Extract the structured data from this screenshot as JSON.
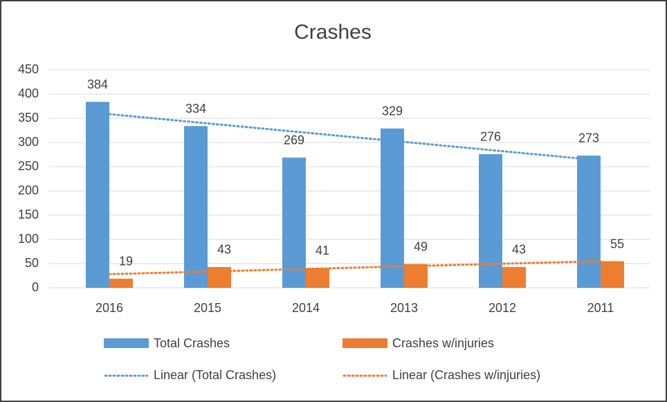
{
  "chart_data": {
    "type": "bar",
    "title": "Crashes",
    "categories": [
      "2016",
      "2015",
      "2014",
      "2013",
      "2012",
      "2011"
    ],
    "series": [
      {
        "name": "Total Crashes",
        "color": "#5b9bd5",
        "values": [
          384,
          334,
          269,
          329,
          276,
          273
        ]
      },
      {
        "name": "Crashes w/injuries",
        "color": "#ed7d31",
        "values": [
          19,
          43,
          41,
          49,
          43,
          55
        ]
      }
    ],
    "trendlines": [
      {
        "name": "Linear (Total Crashes)",
        "series": 0,
        "color": "#5b9bd5"
      },
      {
        "name": "Linear (Crashes w/injuries)",
        "series": 1,
        "color": "#ed7d31"
      }
    ],
    "ylim": [
      0,
      450
    ],
    "yticks": [
      0,
      50,
      100,
      150,
      200,
      250,
      300,
      350,
      400,
      450
    ],
    "grid": true,
    "legend": "bottom"
  }
}
